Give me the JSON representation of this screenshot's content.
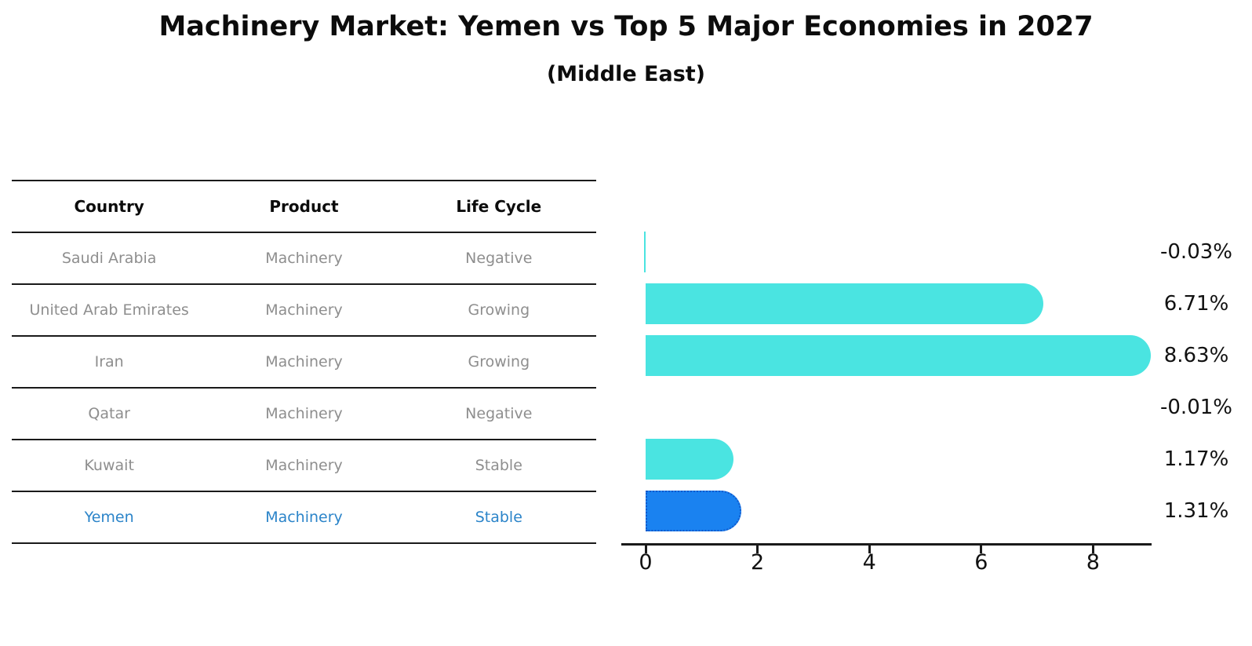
{
  "title": "Machinery Market: Yemen vs Top 5 Major Economies in 2027",
  "subtitle": "(Middle East)",
  "table": {
    "headers": [
      "Country",
      "Product",
      "Life Cycle"
    ],
    "rows": [
      {
        "country": "Saudi Arabia",
        "product": "Machinery",
        "life_cycle": "Negative",
        "highlight": false
      },
      {
        "country": "United Arab Emirates",
        "product": "Machinery",
        "life_cycle": "Growing",
        "highlight": false
      },
      {
        "country": "Iran",
        "product": "Machinery",
        "life_cycle": "Growing",
        "highlight": false
      },
      {
        "country": "Qatar",
        "product": "Machinery",
        "life_cycle": "Negative",
        "highlight": false
      },
      {
        "country": "Kuwait",
        "product": "Machinery",
        "life_cycle": "Stable",
        "highlight": false
      },
      {
        "country": "Yemen",
        "product": "Machinery",
        "life_cycle": "Stable",
        "highlight": true
      }
    ]
  },
  "chart_data": {
    "type": "bar",
    "orientation": "horizontal",
    "title": "Machinery Market: Yemen vs Top 5 Major Economies in 2027 (Middle East)",
    "categories": [
      "Saudi Arabia",
      "United Arab Emirates",
      "Iran",
      "Qatar",
      "Kuwait",
      "Yemen"
    ],
    "values": [
      -0.03,
      6.71,
      8.63,
      -0.01,
      1.17,
      1.31
    ],
    "value_labels": [
      "-0.03%",
      "6.71%",
      "8.63%",
      "-0.01%",
      "1.17%",
      "1.31%"
    ],
    "x_ticks": [
      0,
      2,
      4,
      6,
      8
    ],
    "xlim": [
      0,
      9.05
    ],
    "grid": false,
    "legend": false,
    "highlight_category": "Yemen",
    "colors": {
      "bar": "#4ae4e1",
      "highlight_bar": "#1a82f0",
      "highlight_bar_border": "#1159cc",
      "highlight_text": "#2b84c9",
      "row_text": "#8e8e8e",
      "axis": "#1a1a1a"
    }
  }
}
